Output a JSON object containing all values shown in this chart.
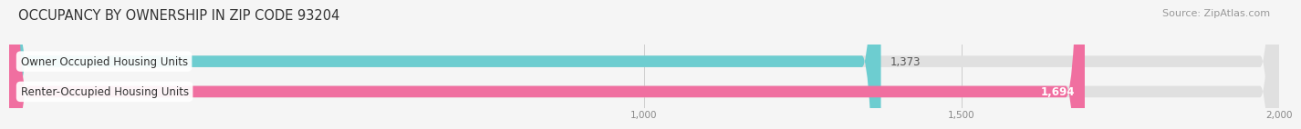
{
  "title": "OCCUPANCY BY OWNERSHIP IN ZIP CODE 93204",
  "source": "Source: ZipAtlas.com",
  "categories": [
    "Owner Occupied Housing Units",
    "Renter-Occupied Housing Units"
  ],
  "values": [
    1373,
    1694
  ],
  "bar_colors": [
    "#6dcdd0",
    "#f06fa0"
  ],
  "value_labels": [
    "1,373",
    "1,694"
  ],
  "value_label_colors": [
    "#555555",
    "#ffffff"
  ],
  "xlim": [
    0,
    2000
  ],
  "xmin": 0,
  "xmax": 2000,
  "xticks": [
    1000,
    1500,
    2000
  ],
  "xtick_labels": [
    "1,000",
    "1,500",
    "2,000"
  ],
  "bar_height": 0.38,
  "background_color": "#f5f5f5",
  "bar_background_color": "#e0e0e0",
  "title_fontsize": 10.5,
  "label_fontsize": 8.5,
  "value_fontsize": 8.5,
  "source_fontsize": 8
}
